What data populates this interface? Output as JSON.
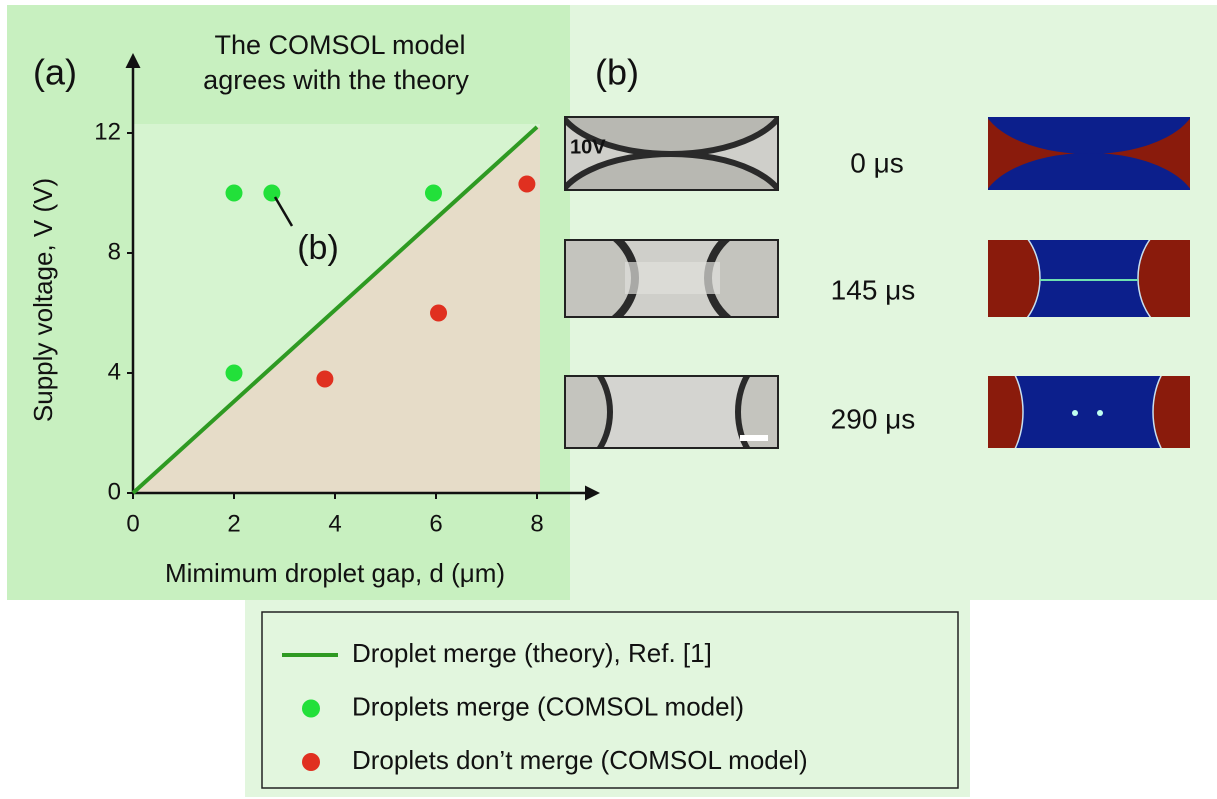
{
  "chart_data": {
    "type": "scatter",
    "title": [
      "The COMSOL model",
      "agrees with the theory"
    ],
    "panel_label": "(a)",
    "x_label": "Mimimum droplet gap, d (μm)",
    "y_label": "Supply voltage, V (V)",
    "xlim": [
      0,
      8
    ],
    "ylim": [
      0,
      12.3
    ],
    "xticks": [
      0,
      2,
      4,
      6,
      8
    ],
    "yticks": [
      0,
      4,
      8,
      12
    ],
    "annotation": "(b)",
    "series": [
      {
        "name": "Droplet merge (theory), Ref. [1]",
        "type": "line",
        "color": "#2e9a22",
        "x": [
          0,
          8
        ],
        "values": [
          0,
          12.2
        ]
      },
      {
        "name": "Droplets merge (COMSOL model)",
        "type": "scatter",
        "color": "#22e03a",
        "x": [
          2,
          2.75,
          5.95,
          2
        ],
        "values": [
          10,
          10,
          10,
          4
        ]
      },
      {
        "name": "Droplets don’t merge (COMSOL model)",
        "type": "scatter",
        "color": "#e03020",
        "x": [
          3.8,
          6.05,
          7.8
        ],
        "values": [
          3.8,
          6,
          10.3
        ]
      }
    ]
  },
  "panel_b": {
    "label": "(b)",
    "voltage": "10V",
    "times": [
      "0 μs",
      "145 μs",
      "290 μs"
    ]
  }
}
